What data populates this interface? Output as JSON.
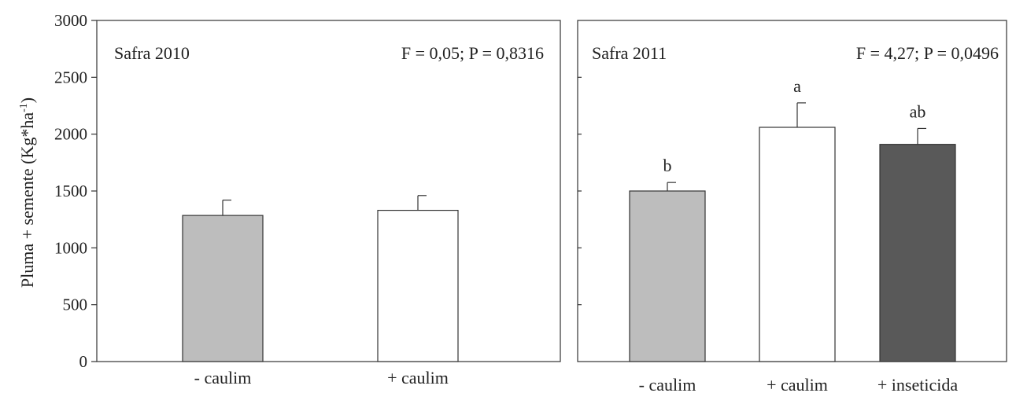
{
  "chart_data": [
    {
      "type": "bar",
      "panel_title": "Safra 2010",
      "stats": "F = 0,05; P = 0,8316",
      "ylabel": "Pluma + semente (Kg*ha⁻¹)",
      "ylabel_main": "Pluma + semente (Kg*ha",
      "ylabel_sup": "-1",
      "ylabel_close": ")",
      "ylim": [
        0,
        3000
      ],
      "yticks": [
        0,
        500,
        1000,
        1500,
        2000,
        2500,
        3000
      ],
      "ytick_labels": [
        "0",
        "500",
        "1000",
        "1500",
        "2000",
        "2500",
        "3000"
      ],
      "categories": [
        "- caulim",
        "+ caulim"
      ],
      "values": [
        1285,
        1330
      ],
      "errors": [
        135,
        130
      ],
      "letters": [
        "",
        ""
      ],
      "colors": [
        "#bdbdbd",
        "#ffffff"
      ],
      "grid": false
    },
    {
      "type": "bar",
      "panel_title": "Safra 2011",
      "stats": "F = 4,27; P = 0,0496",
      "ylim": [
        0,
        3000
      ],
      "yticks": [
        0,
        500,
        1000,
        1500,
        2000,
        2500,
        3000
      ],
      "categories": [
        "- caulim",
        "+ caulim",
        "+ inseticida"
      ],
      "values": [
        1500,
        2060,
        1910
      ],
      "errors": [
        75,
        215,
        140
      ],
      "letters": [
        "b",
        "a",
        "ab"
      ],
      "colors": [
        "#bdbdbd",
        "#ffffff",
        "#595959"
      ],
      "grid": false
    }
  ]
}
